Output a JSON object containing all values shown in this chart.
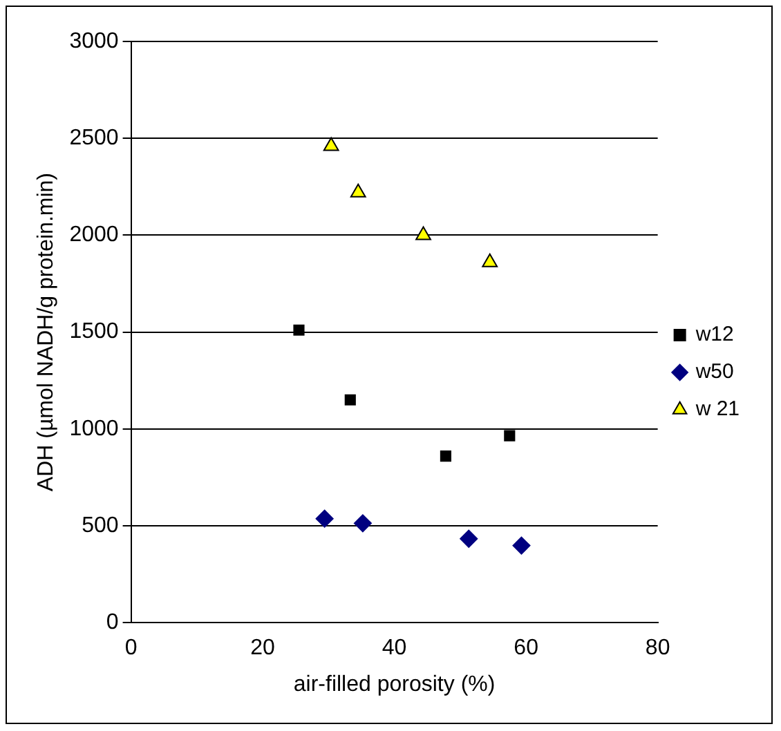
{
  "chart_data": {
    "type": "scatter",
    "xlabel": "air-filled porosity (%)",
    "ylabel": "ADH (µmol NADH/g protein.min)",
    "xlim": [
      0,
      80
    ],
    "xticks": [
      0,
      20,
      40,
      60,
      80
    ],
    "ylim": [
      0,
      3000
    ],
    "yticks": [
      0,
      500,
      1000,
      1500,
      2000,
      2500,
      3000
    ],
    "grid": "y",
    "legend": "right",
    "series": [
      {
        "name": "w12",
        "color": "#000000",
        "marker": "square",
        "x": [
          25.5,
          33.3,
          47.8,
          57.5
        ],
        "values": [
          1510,
          1150,
          860,
          965
        ]
      },
      {
        "name": "w50",
        "color": "#000080",
        "marker": "diamond",
        "x": [
          29.4,
          35.2,
          51.3,
          59.3
        ],
        "values": [
          537,
          513,
          433,
          398
        ]
      },
      {
        "name": "w 21",
        "color": "#ffff00",
        "marker": "triangle",
        "x": [
          30.4,
          34.5,
          44.4,
          54.5
        ],
        "values": [
          2460,
          2220,
          2000,
          1860
        ]
      }
    ]
  }
}
